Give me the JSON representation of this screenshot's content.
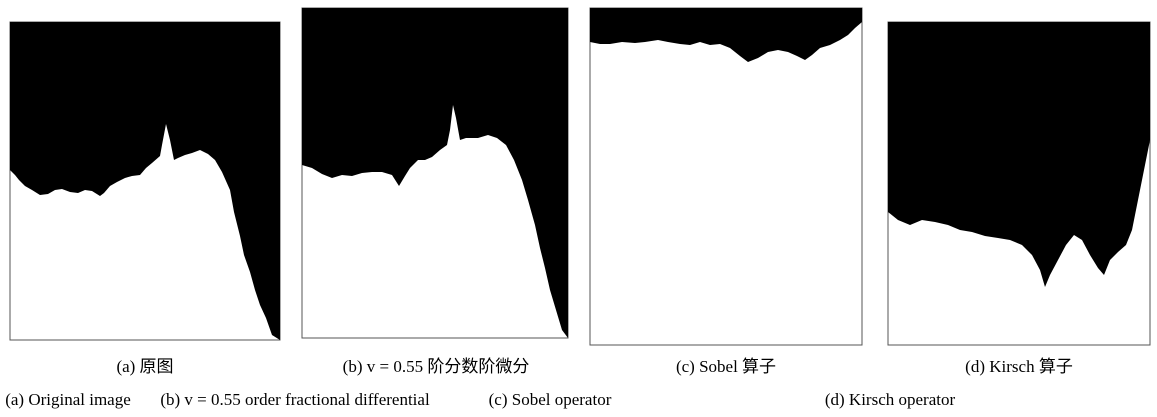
{
  "panels": [
    {
      "caption_zh": "(a) 原图",
      "caption_en": "(a) Original image"
    },
    {
      "caption_zh": "(b) v = 0.55 阶分数阶微分",
      "caption_en": "(b) v = 0.55 order fractional differential"
    },
    {
      "caption_zh": "(c) Sobel 算子",
      "caption_en": "(c) Sobel operator"
    },
    {
      "caption_zh": "(d) Kirsch 算子",
      "caption_en": "(d) Kirsch operator"
    }
  ]
}
